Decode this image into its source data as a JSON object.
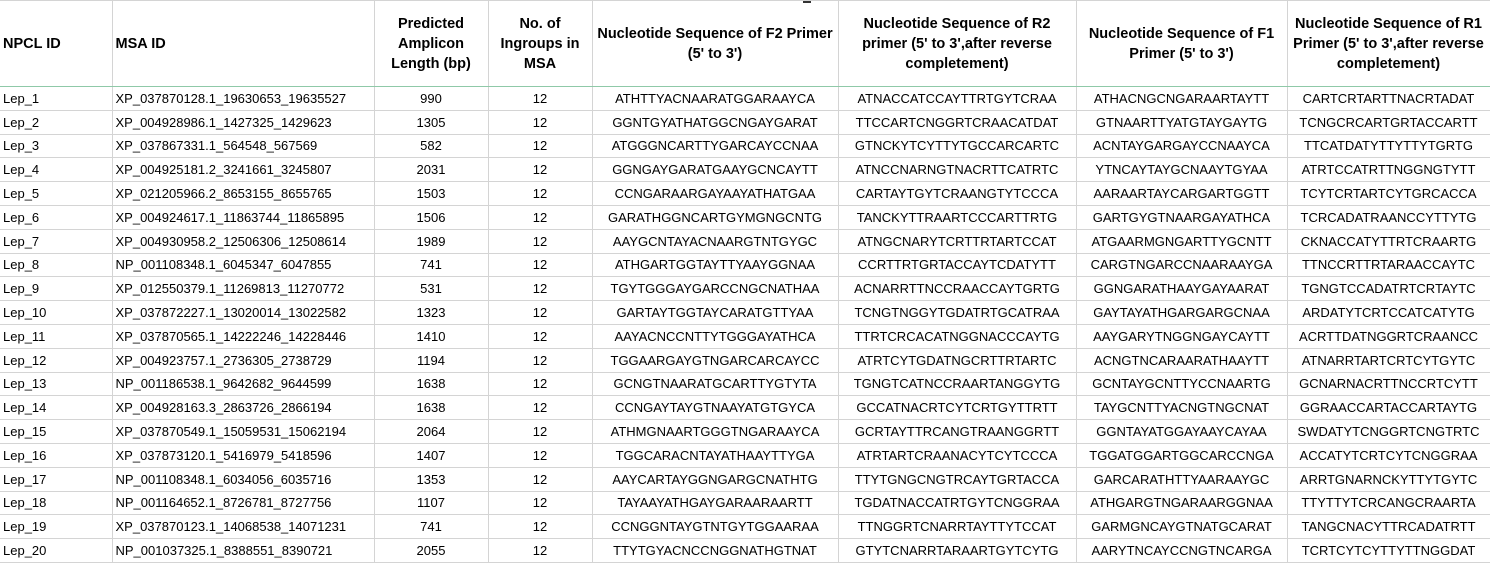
{
  "table": {
    "headers": [
      "NPCL ID",
      "MSA ID",
      "Predicted Amplicon Length (bp)",
      "No. of Ingroups in MSA",
      "Nucleotide Sequence of F2 Primer (5' to 3')",
      "Nucleotide Sequence of R2 primer (5' to 3',after reverse completement)",
      "Nucleotide Sequence of F1 Primer (5' to 3')",
      "Nucleotide Sequence of R1 Primer (5' to 3',after reverse completement)"
    ],
    "rows": [
      [
        "Lep_1",
        "XP_037870128.1_19630653_19635527",
        "990",
        "12",
        "ATHTTYACNAARATGGARAAYCA",
        "ATNACCATCCAYTTRTGYTCRAA",
        "ATHACNGCNGARAARTAYTT",
        "CARTCRTARTTNACRTADAT"
      ],
      [
        "Lep_2",
        "XP_004928986.1_1427325_1429623",
        "1305",
        "12",
        "GGNTGYATHATGGCNGAYGARAT",
        "TTCCARTCNGGRTCRAACATDAT",
        "GTNAARTTYATGTAYGAYTG",
        "TCNGCRCARTGRTACCARTT"
      ],
      [
        "Lep_3",
        "XP_037867331.1_564548_567569",
        "582",
        "12",
        "ATGGGNCARTTYGARCAYCCNAA",
        "GTNCKYTCYTTYTGCCARCARTC",
        "ACNTAYGARGAYCCNAAYCA",
        "TTCATDATYTTYTTYTGRTG"
      ],
      [
        "Lep_4",
        "XP_004925181.2_3241661_3245807",
        "2031",
        "12",
        "GGNGAYGARATGAAYGCNCAYTT",
        "ATNCCNARNGTNACRTTCATRTC",
        "YTNCAYTAYGCNAAYTGYAA",
        "ATRTCCATRTTNGGNGTYTT"
      ],
      [
        "Lep_5",
        "XP_021205966.2_8653155_8655765",
        "1503",
        "12",
        "CCNGARAARGAYAAYATHATGAA",
        "CARTAYTGYTCRAANGTYTCCCA",
        "AARAARTAYCARGARTGGTT",
        "TCYTCRTARTCYTGRCACCA"
      ],
      [
        "Lep_6",
        "XP_004924617.1_11863744_11865895",
        "1506",
        "12",
        "GARATHGGNCARTGYMGNGCNTG",
        "TANCKYTTRAARTCCCARTTRTG",
        "GARTGYGTNAARGAYATHCA",
        "TCRCADATRAANCCYTTYTG"
      ],
      [
        "Lep_7",
        "XP_004930958.2_12506306_12508614",
        "1989",
        "12",
        "AAYGCNTAYACNAARGTNTGYGC",
        "ATNGCNARYTCRTTRTARTCCAT",
        "ATGAARMGNGARTTYGCNTT",
        "CKNACCATYTTRTCRAARTG"
      ],
      [
        "Lep_8",
        "NP_001108348.1_6045347_6047855",
        "741",
        "12",
        "ATHGARTGGTAYTTYAAYGGNAA",
        "CCRTTRTGRTACCAYTCDATYTT",
        "CARGTNGARCCNAARAAYGA",
        "TTNCCRTTRTARAACCAYTC"
      ],
      [
        "Lep_9",
        "XP_012550379.1_11269813_11270772",
        "531",
        "12",
        "TGYTGGGAYGARCCNGCNATHAA",
        "ACNARRTTNCCRAACCAYTGRTG",
        "GGNGARATHAAYGAYAARAT",
        "TGNGTCCADATRTCRTAYTC"
      ],
      [
        "Lep_10",
        "XP_037872227.1_13020014_13022582",
        "1323",
        "12",
        "GARTAYTGGTAYCARATGTTYAA",
        "TCNGTNGGYTGDATRTGCATRAA",
        "GAYTAYATHGARGARGCNAA",
        "ARDATYTCRTCCATCATYTG"
      ],
      [
        "Lep_11",
        "XP_037870565.1_14222246_14228446",
        "1410",
        "12",
        "AAYACNCCNTTYTGGGAYATHCA",
        "TTRTCRCACATNGGNACCCAYTG",
        "AAYGARYTNGGNGAYCAYTT",
        "ACRTTDATNGGRTCRAANCC"
      ],
      [
        "Lep_12",
        "XP_004923757.1_2736305_2738729",
        "1194",
        "12",
        "TGGAARGAYGTNGARCARCAYCC",
        "ATRTCYTGDATNGCRTTRTARTC",
        "ACNGTNCARAARATHAAYTT",
        "ATNARRTARTCRTCYTGYTC"
      ],
      [
        "Lep_13",
        "NP_001186538.1_9642682_9644599",
        "1638",
        "12",
        "GCNGTNAARATGCARTTYGTYTA",
        "TGNGTCATNCCRAARTANGGYTG",
        "GCNTAYGCNTTYCCNAARTG",
        "GCNARNACRTTNCCRTCYTT"
      ],
      [
        "Lep_14",
        "XP_004928163.3_2863726_2866194",
        "1638",
        "12",
        "CCNGAYTAYGTNAAYATGTGYCA",
        "GCCATNACRTCYTCRTGYTTRTT",
        "TAYGCNTTYACNGTNGCNAT",
        "GGRAACCARTACCARTAYTG"
      ],
      [
        "Lep_15",
        "XP_037870549.1_15059531_15062194",
        "2064",
        "12",
        "ATHMGNAARTGGGTNGARAAYCA",
        "GCRTAYTTRCANGTRAANGGRTT",
        "GGNTAYATGGAYAAYCAYAA",
        "SWDATYTCNGGRTCNGTRTC"
      ],
      [
        "Lep_16",
        "XP_037873120.1_5416979_5418596",
        "1407",
        "12",
        "TGGCARACNTAYATHAAYTTYGA",
        "ATRTARTCRAANACYTCYTCCCA",
        "TGGATGGARTGGCARCCNGA",
        "ACCATYTCRTCYTCNGGRAA"
      ],
      [
        "Lep_17",
        "NP_001108348.1_6034056_6035716",
        "1353",
        "12",
        "AAYCARTAYGGNGARGCNATHTG",
        "TTYTGNGCNGTRCAYTGRTACCA",
        "GARCARATHTTYAARAAYGC",
        "ARRTGNARNCKYTTYTGYTC"
      ],
      [
        "Lep_18",
        "NP_001164652.1_8726781_8727756",
        "1107",
        "12",
        "TAYAAYATHGAYGARAARAARTT",
        "TGDATNACCATRTGYTCNGGRAA",
        "ATHGARGTNGARAARGGNAA",
        "TTYTTYTCRCANGCRAARTA"
      ],
      [
        "Lep_19",
        "XP_037870123.1_14068538_14071231",
        "741",
        "12",
        "CCNGGNTAYGTNTGYTGGAARAA",
        "TTNGGRTCNARRTAYTTYTCCAT",
        "GARMGNCAYGTNATGCARAT",
        "TANGCNACYTTRCADATRTT"
      ],
      [
        "Lep_20",
        "NP_001037325.1_8388551_8390721",
        "2055",
        "12",
        "TTYTGYACNCCNGGNATHGTNAT",
        "GTYTCNARRTARAARTGYTCYTG",
        "AARYTNCAYCCNGTNCARGA",
        "TCRTCYTCYTTYTTNGGDAT"
      ]
    ]
  },
  "colors": {
    "header_underline": "#8fc9a8",
    "gridline": "#d4d4d4"
  }
}
